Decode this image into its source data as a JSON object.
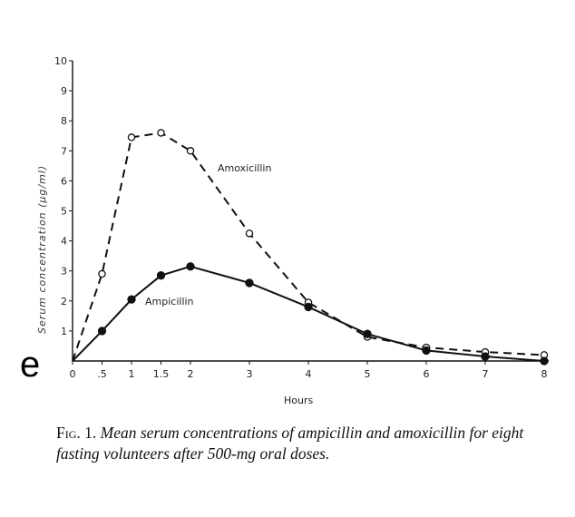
{
  "background_fragment": "e",
  "caption": {
    "label": "Fig. 1.",
    "text": "Mean serum concentrations of ampicillin and amoxicillin for eight fasting volunteers after 500-mg oral doses."
  },
  "chart_data": {
    "type": "line",
    "title": "",
    "xlabel": "Hours",
    "ylabel": "Serum concentration (μg/ml)",
    "x": [
      0,
      0.5,
      1,
      1.5,
      2,
      3,
      4,
      5,
      6,
      7,
      8
    ],
    "x_tick_labels": [
      "0",
      ".5",
      "1",
      "1.5",
      "2",
      "3",
      "4",
      "5",
      "6",
      "7",
      "8"
    ],
    "y_ticks": [
      1,
      2,
      3,
      4,
      5,
      6,
      7,
      8,
      9,
      10
    ],
    "xlim": [
      0,
      8
    ],
    "ylim": [
      0,
      10
    ],
    "grid": false,
    "series": [
      {
        "name": "Amoxicillin",
        "style": "dashed",
        "marker": "open-circle",
        "values": [
          0,
          2.9,
          7.45,
          7.6,
          7.0,
          4.25,
          1.95,
          0.8,
          0.45,
          0.3,
          0.2
        ]
      },
      {
        "name": "Ampicillin",
        "style": "solid",
        "marker": "filled-circle",
        "values": [
          0,
          1.0,
          2.05,
          2.85,
          3.15,
          2.6,
          1.8,
          0.9,
          0.35,
          0.15,
          0
        ]
      }
    ]
  }
}
